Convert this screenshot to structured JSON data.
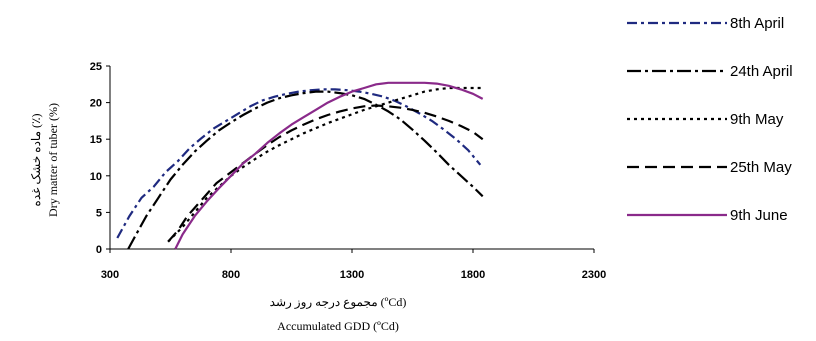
{
  "chart_data": {
    "type": "line",
    "xlabel": "Accumulated GDD (ºCd)",
    "xlabel_secondary": "مجموع درجه روز رشد (ºCd)",
    "ylabel": "Dry matter of tuber (%)",
    "ylabel_secondary": "ماده خشک غده (٪)",
    "xlim": [
      300,
      2300
    ],
    "ylim": [
      0,
      25
    ],
    "xticks": [
      "300",
      "800",
      "1300",
      "1800",
      "2300"
    ],
    "yticks": [
      "0",
      "5",
      "10",
      "15",
      "20",
      "25"
    ],
    "grid": false,
    "legend_position": "right",
    "series": [
      {
        "name": "8th April",
        "color": "#1f2a80",
        "dash": "dash-dot",
        "x": [
          330,
          380,
          430,
          480,
          530,
          580,
          630,
          680,
          730,
          780,
          830,
          880,
          930,
          980,
          1030,
          1080,
          1130,
          1180,
          1230,
          1280,
          1330,
          1380,
          1430,
          1480,
          1530,
          1580,
          1630,
          1680,
          1730,
          1780,
          1830
        ],
        "y": [
          1.5,
          4.5,
          7,
          8.5,
          10.5,
          12,
          13.8,
          15.2,
          16.5,
          17.5,
          18.5,
          19.5,
          20.3,
          20.8,
          21.2,
          21.5,
          21.7,
          21.8,
          21.8,
          21.7,
          21.5,
          21.2,
          20.8,
          20.2,
          19.4,
          18.5,
          17.5,
          16.3,
          15,
          13.5,
          11.5
        ]
      },
      {
        "name": "24th April",
        "color": "#000000",
        "dash": "long-dash-dot",
        "x": [
          375,
          400,
          450,
          500,
          550,
          600,
          650,
          700,
          750,
          800,
          850,
          900,
          950,
          1000,
          1050,
          1100,
          1150,
          1200,
          1250,
          1300,
          1350,
          1400,
          1450,
          1500,
          1550,
          1600,
          1650,
          1700,
          1750,
          1800,
          1840
        ],
        "y": [
          0,
          1.5,
          4.5,
          7,
          9.5,
          11.5,
          13.3,
          14.8,
          16.2,
          17.3,
          18.3,
          19.2,
          20,
          20.6,
          21,
          21.3,
          21.5,
          21.5,
          21.3,
          21,
          20.5,
          19.7,
          18.8,
          17.7,
          16.3,
          14.8,
          13.2,
          11.5,
          10,
          8.5,
          7.2
        ]
      },
      {
        "name": "9th May",
        "color": "#000000",
        "dash": "dotted",
        "x": [
          540,
          600,
          650,
          700,
          750,
          800,
          850,
          900,
          950,
          1000,
          1050,
          1100,
          1150,
          1200,
          1250,
          1300,
          1350,
          1400,
          1450,
          1500,
          1550,
          1600,
          1650,
          1700,
          1750,
          1800,
          1840
        ],
        "y": [
          1,
          3,
          5,
          7,
          8.5,
          10,
          11.2,
          12.3,
          13.3,
          14.2,
          15,
          15.8,
          16.5,
          17.2,
          17.8,
          18.4,
          19,
          19.5,
          20,
          20.5,
          21,
          21.5,
          21.8,
          22,
          22,
          22,
          22
        ]
      },
      {
        "name": "25th May",
        "color": "#000000",
        "dash": "long-dash",
        "x": [
          540,
          580,
          620,
          660,
          700,
          740,
          780,
          820,
          860,
          900,
          950,
          1000,
          1050,
          1100,
          1150,
          1200,
          1250,
          1300,
          1350,
          1400,
          1450,
          1500,
          1550,
          1600,
          1650,
          1700,
          1750,
          1800,
          1840
        ],
        "y": [
          1,
          2.5,
          4.5,
          6,
          7.5,
          9,
          10,
          11,
          12,
          13,
          14.2,
          15.3,
          16.2,
          17,
          17.7,
          18.3,
          18.8,
          19.2,
          19.5,
          19.6,
          19.5,
          19.3,
          19,
          18.6,
          18.1,
          17.5,
          16.8,
          16,
          15
        ]
      },
      {
        "name": "9th June",
        "color": "#8a2a8a",
        "dash": "solid",
        "x": [
          570,
          600,
          650,
          700,
          750,
          800,
          850,
          900,
          950,
          1000,
          1050,
          1100,
          1150,
          1200,
          1250,
          1300,
          1350,
          1400,
          1450,
          1500,
          1550,
          1600,
          1650,
          1700,
          1750,
          1800,
          1840
        ],
        "y": [
          0,
          2,
          4.5,
          6.5,
          8.3,
          10,
          11.7,
          13,
          14.5,
          15.8,
          17,
          18,
          19,
          20,
          20.8,
          21.5,
          22,
          22.5,
          22.7,
          22.7,
          22.7,
          22.7,
          22.6,
          22.3,
          21.8,
          21.2,
          20.5
        ]
      }
    ]
  }
}
